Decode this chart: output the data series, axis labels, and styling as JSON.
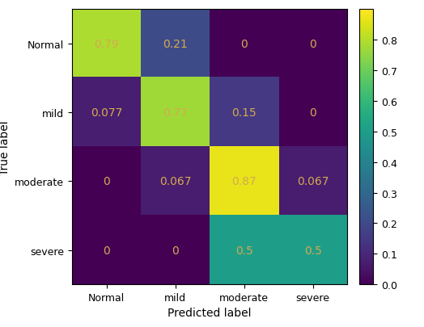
{
  "matrix": [
    [
      0.79,
      0.21,
      0,
      0
    ],
    [
      0.077,
      0.77,
      0.15,
      0
    ],
    [
      0,
      0.067,
      0.87,
      0.067
    ],
    [
      0,
      0,
      0.5,
      0.5
    ]
  ],
  "row_labels": [
    "Normal",
    "mild",
    "moderate",
    "severe"
  ],
  "col_labels": [
    "Normal",
    "mild",
    "moderate",
    "severe"
  ],
  "xlabel": "Predicted label",
  "ylabel": "True label",
  "cmap": "viridis",
  "vmin": 0.0,
  "vmax": 0.9,
  "text_color": "#d4aa50",
  "figsize": [
    5.24,
    4.06
  ],
  "dpi": 100,
  "colorbar_ticks": [
    0.0,
    0.1,
    0.2,
    0.3,
    0.4,
    0.5,
    0.6,
    0.7,
    0.8
  ]
}
